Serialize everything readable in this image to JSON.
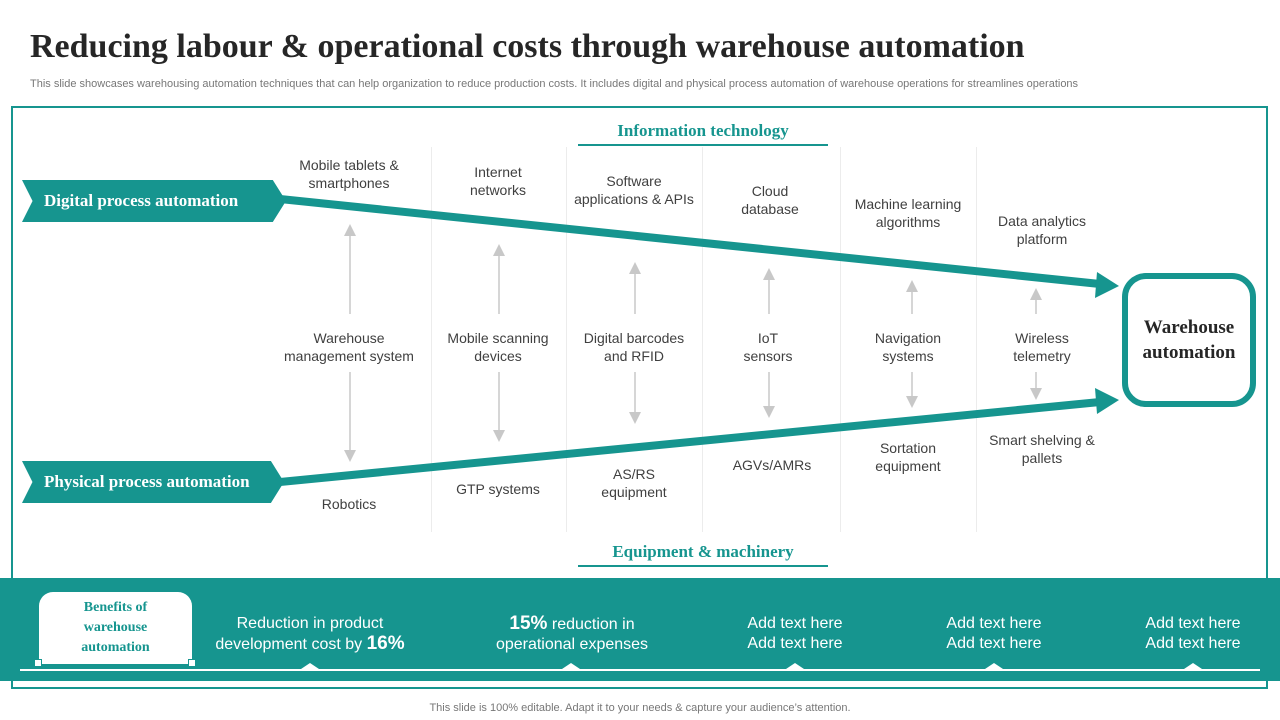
{
  "title": "Reducing labour & operational costs through warehouse automation",
  "subtitle": "This slide showcases warehousing automation techniques that can help organization to reduce production costs. It includes digital and physical process automation of warehouse operations for streamlines operations",
  "sections": {
    "top": "Information technology",
    "bottom": "Equipment & machinery"
  },
  "flows": {
    "digital": "Digital process automation",
    "physical": "Physical process automation"
  },
  "columns": [
    {
      "top": "Mobile tablets & smartphones",
      "middle": "Warehouse management system",
      "bottom": "Robotics"
    },
    {
      "top": "Internet networks",
      "middle": "Mobile scanning devices",
      "bottom": "GTP systems"
    },
    {
      "top": "Software applications & APIs",
      "middle": "Digital barcodes and RFID",
      "bottom": "AS/RS equipment"
    },
    {
      "top": "Cloud database",
      "middle": "IoT sensors",
      "bottom": "AGVs/AMRs"
    },
    {
      "top": "Machine learning algorithms",
      "middle": "Navigation systems",
      "bottom": "Sortation equipment"
    },
    {
      "top": "Data analytics platform",
      "middle": "Wireless telemetry",
      "bottom": "Smart shelving & pallets"
    }
  ],
  "target": "Warehouse automation",
  "benefits": {
    "heading": "Benefits of warehouse automation",
    "b1": {
      "text": "Reduction in product development cost by ",
      "value": "16%"
    },
    "b2": {
      "value": "15%",
      "text": " reduction in operational expenses"
    },
    "b3": {
      "line1": "Add text here",
      "line2": "Add text here"
    },
    "b4": {
      "line1": "Add text here",
      "line2": "Add text here"
    },
    "b5": {
      "line1": "Add text here",
      "line2": "Add text here"
    }
  },
  "footer": "This slide is 100% editable. Adapt it to your needs & capture your audience’s attention.",
  "colors": {
    "accent": "#16958f",
    "arrow": "#c8c8c8"
  }
}
